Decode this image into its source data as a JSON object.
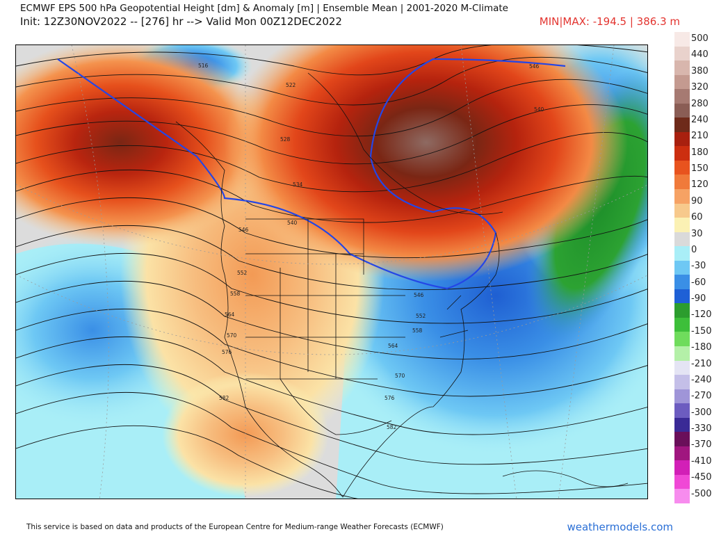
{
  "header": {
    "title": "ECMWF EPS 500 hPa Geopotential Height [dm] & Anomaly [m] | Ensemble Mean | 2001-2020 M-Climate",
    "init": "Init: 12Z30NOV2022 -- [276] hr --> Valid Mon 00Z12DEC2022",
    "minmax": "MIN|MAX: -194.5 | 386.3 m",
    "minmax_color": "#e3342f"
  },
  "contour_labels": [
    "516",
    "522",
    "528",
    "534",
    "540",
    "546",
    "552",
    "558",
    "564",
    "570",
    "576",
    "582",
    "546",
    "540",
    "546",
    "552",
    "558",
    "564",
    "570",
    "576",
    "582"
  ],
  "colorbar": {
    "labels": [
      "500",
      "440",
      "380",
      "320",
      "280",
      "240",
      "210",
      "180",
      "150",
      "120",
      "90",
      "60",
      "30",
      "0",
      "-30",
      "-60",
      "-90",
      "-120",
      "-150",
      "-180",
      "-210",
      "-240",
      "-270",
      "-300",
      "-330",
      "-370",
      "-410",
      "-450",
      "-500"
    ],
    "colors": [
      "#f7e9e6",
      "#e9d2cc",
      "#d8b6ad",
      "#c49a90",
      "#a67a72",
      "#8a5d55",
      "#6e2a1a",
      "#a8200f",
      "#cc2e10",
      "#e8531e",
      "#f07a3a",
      "#f6a264",
      "#f7c98c",
      "#fbf1b4",
      "#dadada",
      "#a9eef7",
      "#6ec8f4",
      "#3a8fe6",
      "#1e60d6",
      "#2c9d2e",
      "#3dbf3a",
      "#6fdc5c",
      "#b4f0a8",
      "#e4e4f4",
      "#c4bfe8",
      "#9f95d8",
      "#6c5cc0",
      "#3a2a96",
      "#6a0f5a",
      "#a0167f",
      "#d21fb7",
      "#f048d6",
      "#f78cee"
    ]
  },
  "footer": {
    "credit": "This service is based on data and products of the European Centre for Medium-range Weather Forecasts (ECMWF)",
    "brand": "weathermodels.com",
    "brand_color": "#2a6fd6"
  }
}
